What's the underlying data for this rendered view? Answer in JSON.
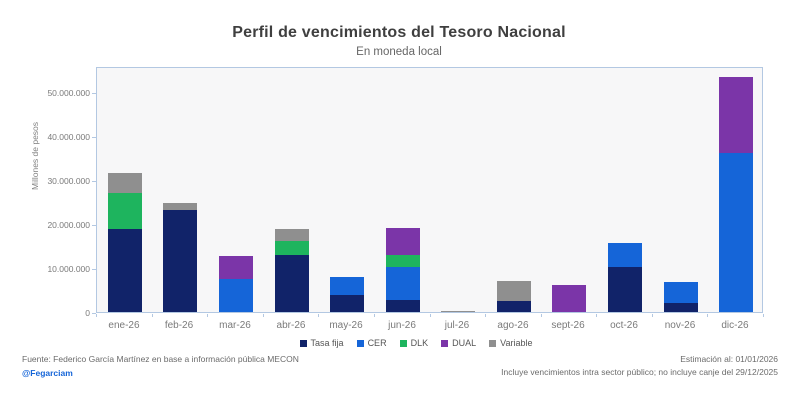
{
  "chart": {
    "title": "Perfil de vencimientos del Tesoro Nacional",
    "subtitle": "En moneda local",
    "ylabel": "Millones de pesos"
  },
  "chart_data": {
    "type": "bar",
    "stacked": true,
    "title": "Perfil de vencimientos del Tesoro Nacional",
    "subtitle": "En moneda local",
    "xlabel": "",
    "ylabel": "Millones de pesos",
    "ylim": [
      0,
      56000000
    ],
    "grid": false,
    "legend_position": "bottom",
    "categories": [
      "ene-26",
      "feb-26",
      "mar-26",
      "abr-26",
      "may-26",
      "jun-26",
      "jul-26",
      "ago-26",
      "sept-26",
      "oct-26",
      "nov-26",
      "dic-26"
    ],
    "series": [
      {
        "name": "Tasa fija",
        "color": "#112369",
        "values": [
          19000000,
          23300000,
          0,
          13000000,
          3900000,
          2700000,
          0,
          2400000,
          0,
          10300000,
          2000000,
          0
        ]
      },
      {
        "name": "CER",
        "color": "#1565d8",
        "values": [
          0,
          0,
          7500000,
          0,
          4000000,
          7500000,
          0,
          0,
          0,
          5400000,
          4700000,
          36200000
        ]
      },
      {
        "name": "DLK",
        "color": "#1eb45e",
        "values": [
          8200000,
          0,
          0,
          3300000,
          0,
          2800000,
          0,
          0,
          0,
          0,
          0,
          0
        ]
      },
      {
        "name": "DUAL",
        "color": "#7b35a8",
        "values": [
          0,
          0,
          5200000,
          0,
          0,
          6100000,
          0,
          0,
          6200000,
          0,
          0,
          17300000
        ]
      },
      {
        "name": "Variable",
        "color": "#8f8f8f",
        "values": [
          4500000,
          1500000,
          0,
          2800000,
          0,
          0,
          300000,
          4600000,
          0,
          0,
          0,
          0
        ]
      }
    ],
    "y_ticks": [
      {
        "value": 0,
        "label": "0"
      },
      {
        "value": 10000000,
        "label": "10.000.000"
      },
      {
        "value": 20000000,
        "label": "20.000.000"
      },
      {
        "value": 30000000,
        "label": "30.000.000"
      },
      {
        "value": 40000000,
        "label": "40.000.000"
      },
      {
        "value": 50000000,
        "label": "50.000.000"
      }
    ]
  },
  "footer": {
    "source": "Fuente: Federico García Martínez en base a información pública MECON",
    "handle": "@Fegarciam",
    "estimation": "Estimación al: 01/01/2026",
    "note": "Incluye vencimientos intra sector público; no incluye canje del 29/12/2025"
  }
}
